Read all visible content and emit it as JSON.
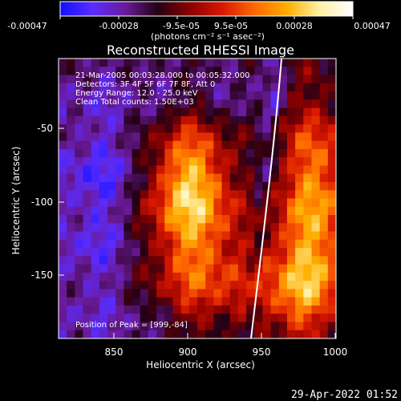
{
  "colorbar": {
    "tick_labels": [
      "-0.00047",
      "-0.00028",
      "-9.5e-05",
      "9.5e-05",
      "0.00028",
      "0.00047"
    ],
    "unit_label": "(photons cm⁻² s⁻¹ asec⁻²)",
    "gradient_stops": [
      "#1010ff",
      "#5b2cff",
      "#6a1b9a",
      "#240014",
      "#8b0000",
      "#d81800",
      "#ff6a00",
      "#ffb000",
      "#fff1a8",
      "#ffffff"
    ]
  },
  "image": {
    "title": "Reconstructed RHESSI Image",
    "annotation_lines": [
      "21-Mar-2005 00:03:28.000 to 00:05:32.000",
      "Detectors: 3F 4F 5F 6F 7F 8F, Att 0",
      "Energy Range: 12.0 - 25.0 keV",
      "Clean    Total counts: 1.50E+03"
    ],
    "peak_text": "Position of Peak = [999,-84]",
    "limb_color": "#ffffff",
    "x_axis": {
      "label": "Heliocentric X (arcsec)",
      "range": [
        813,
        1001
      ],
      "ticks": [
        850,
        900,
        950,
        1000
      ]
    },
    "y_axis": {
      "label": "Heliocentric Y (arcsec)",
      "range": [
        -192,
        -7
      ],
      "ticks": [
        -50,
        -100,
        -150
      ]
    }
  },
  "footer": {
    "timestamp": "29-Apr-2022 01:52"
  }
}
